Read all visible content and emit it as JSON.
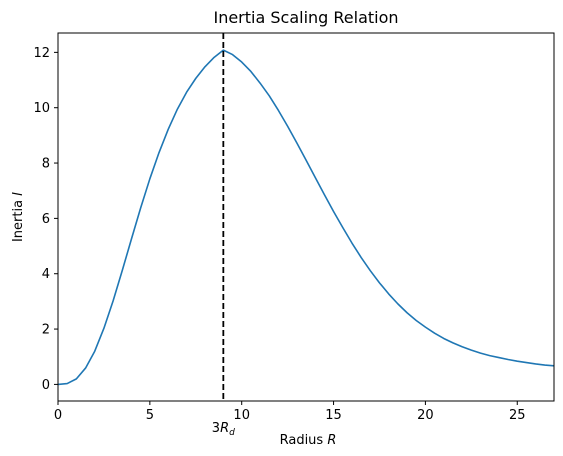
{
  "chart_data": {
    "type": "line",
    "title": "Inertia Scaling Relation",
    "xlabel": "Radius R",
    "xlabel_parts": {
      "text": "Radius ",
      "var": "R"
    },
    "ylabel": "Inertia I",
    "ylabel_parts": {
      "text": "Inertia ",
      "var": "I"
    },
    "xlim": [
      0,
      27
    ],
    "ylim": [
      -0.6,
      12.7
    ],
    "x_ticks": [
      0,
      5,
      10,
      15,
      20,
      25
    ],
    "y_ticks": [
      0,
      2,
      4,
      6,
      8,
      10,
      12
    ],
    "grid": false,
    "legend": null,
    "series": [
      {
        "line_color": "#1f77b4",
        "x": [
          0,
          0.5,
          1,
          1.5,
          2,
          2.5,
          3,
          3.5,
          4,
          4.5,
          5,
          5.5,
          6,
          6.5,
          7,
          7.5,
          8,
          8.5,
          9,
          9.5,
          10,
          10.5,
          11,
          11.5,
          12,
          12.5,
          13,
          13.5,
          14,
          14.5,
          15,
          15.5,
          16,
          16.5,
          17,
          17.5,
          18,
          18.5,
          19,
          19.5,
          20,
          20.5,
          21,
          21.5,
          22,
          22.5,
          23,
          23.5,
          24,
          24.5,
          25,
          25.5,
          26,
          26.5,
          27
        ],
        "y": [
          0,
          0.03,
          0.2,
          0.59,
          1.2,
          2.03,
          3.02,
          4.12,
          5.26,
          6.38,
          7.43,
          8.38,
          9.22,
          9.95,
          10.56,
          11.06,
          11.48,
          11.82,
          12.08,
          11.92,
          11.65,
          11.31,
          10.89,
          10.43,
          9.9,
          9.33,
          8.73,
          8.11,
          7.48,
          6.86,
          6.25,
          5.67,
          5.11,
          4.59,
          4.11,
          3.67,
          3.27,
          2.91,
          2.59,
          2.31,
          2.07,
          1.85,
          1.66,
          1.5,
          1.36,
          1.24,
          1.13,
          1.04,
          0.97,
          0.9,
          0.84,
          0.79,
          0.74,
          0.7,
          0.67
        ]
      }
    ],
    "annotations": [
      {
        "type": "vline",
        "x": 9,
        "style": "dashed",
        "color": "#000000",
        "label": "3R_d",
        "label_parts": {
          "coef": "3",
          "var": "R",
          "sub": "d"
        }
      }
    ]
  }
}
